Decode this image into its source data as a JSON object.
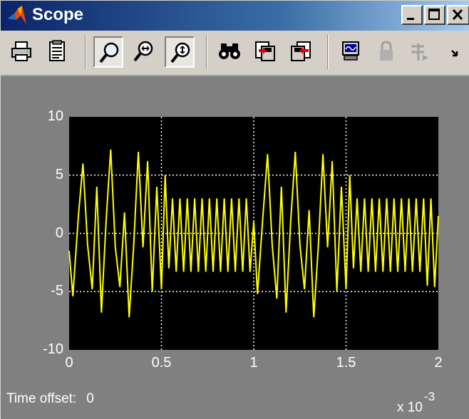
{
  "window": {
    "title": "Scope",
    "icon": "matlab-logo-icon",
    "controls": [
      "minimize-icon",
      "maximize-icon",
      "close-icon"
    ]
  },
  "toolbar": {
    "buttons": [
      {
        "name": "print",
        "icon": "printer-icon"
      },
      {
        "name": "parameters",
        "icon": "parameters-icon"
      },
      {
        "name": "zoom",
        "icon": "zoom-icon",
        "pressed": true
      },
      {
        "name": "zoom-x-axis",
        "icon": "zoom-x-icon"
      },
      {
        "name": "zoom-y-axis",
        "icon": "zoom-y-icon",
        "pressed": true
      },
      {
        "name": "autoscale",
        "icon": "binoculars-icon"
      },
      {
        "name": "save-axes-settings",
        "icon": "save-axes-icon"
      },
      {
        "name": "restore-axes-settings",
        "icon": "restore-axes-icon"
      },
      {
        "name": "floating-scope",
        "icon": "floating-scope-icon"
      },
      {
        "name": "lock-axes",
        "icon": "lock-icon",
        "disabled": true
      },
      {
        "name": "signal-selector",
        "icon": "signal-selector-icon",
        "disabled": true
      },
      {
        "name": "more",
        "icon": "chevron-more-icon"
      }
    ]
  },
  "status": {
    "time_offset_label": "Time offset:",
    "time_offset_value": "0",
    "x_multiplier": "x 10",
    "x_exponent": "-3"
  },
  "chart_data": {
    "type": "line",
    "xlim": [
      0,
      2
    ],
    "ylim": [
      -10,
      10
    ],
    "x_ticks": [
      "0",
      "0.5",
      "1",
      "1.5",
      "2"
    ],
    "y_ticks": [
      "10",
      "5",
      "0",
      "-5",
      "-10"
    ],
    "grid": true,
    "background": "#000000",
    "line_color": "#ffff00",
    "series": [
      {
        "x": [
          0,
          0.02,
          0.05,
          0.075,
          0.1,
          0.125,
          0.15,
          0.175,
          0.2,
          0.225,
          0.25,
          0.275,
          0.3,
          0.325,
          0.35,
          0.375,
          0.4,
          0.425,
          0.45,
          0.475,
          0.5,
          0.52,
          0.54,
          0.56,
          0.58,
          0.6,
          0.62,
          0.64,
          0.66,
          0.68,
          0.7,
          0.72,
          0.74,
          0.76,
          0.78,
          0.8,
          0.82,
          0.84,
          0.86,
          0.88,
          0.9,
          0.92,
          0.94,
          0.96,
          0.98,
          1,
          1.02,
          1.05,
          1.075,
          1.1,
          1.125,
          1.15,
          1.175,
          1.2,
          1.225,
          1.25,
          1.275,
          1.3,
          1.325,
          1.35,
          1.375,
          1.4,
          1.425,
          1.45,
          1.475,
          1.5,
          1.52,
          1.54,
          1.56,
          1.58,
          1.6,
          1.62,
          1.64,
          1.66,
          1.68,
          1.7,
          1.72,
          1.74,
          1.76,
          1.78,
          1.8,
          1.82,
          1.84,
          1.86,
          1.88,
          1.9,
          1.92,
          1.94,
          1.96,
          1.98,
          2
        ],
        "y": [
          -1.5,
          -5.4,
          1.5,
          6.0,
          -1.0,
          -4.8,
          4.0,
          -6.8,
          1.0,
          7.2,
          -1.2,
          -4.6,
          1.8,
          -7.2,
          -1.0,
          7.0,
          -1.2,
          6.2,
          -5.0,
          4.0,
          -4.8,
          5.0,
          -3.0,
          3.0,
          -3.3,
          3.0,
          -3.3,
          3.0,
          -3.3,
          3.0,
          -3.3,
          3.0,
          -3.3,
          3.0,
          -3.3,
          3.0,
          -3.3,
          3.0,
          -3.3,
          3.0,
          -3.3,
          3.0,
          -3.3,
          3.0,
          -3.3,
          1.0,
          -5.2,
          1.5,
          6.8,
          -1.0,
          -5.6,
          4.0,
          -6.8,
          1.0,
          7.0,
          -1.0,
          -4.8,
          2.0,
          -7.2,
          -1.0,
          6.8,
          -1.2,
          6.2,
          -5.0,
          4.0,
          -4.8,
          5.0,
          -3.0,
          3.0,
          -3.3,
          3.0,
          -3.3,
          3.0,
          -3.3,
          3.0,
          -3.3,
          3.0,
          -3.3,
          3.0,
          -3.3,
          3.0,
          -3.3,
          3.0,
          -3.3,
          3.0,
          -3.3,
          3.0,
          -4.5,
          3.0,
          -4.6,
          1.5
        ]
      }
    ]
  }
}
